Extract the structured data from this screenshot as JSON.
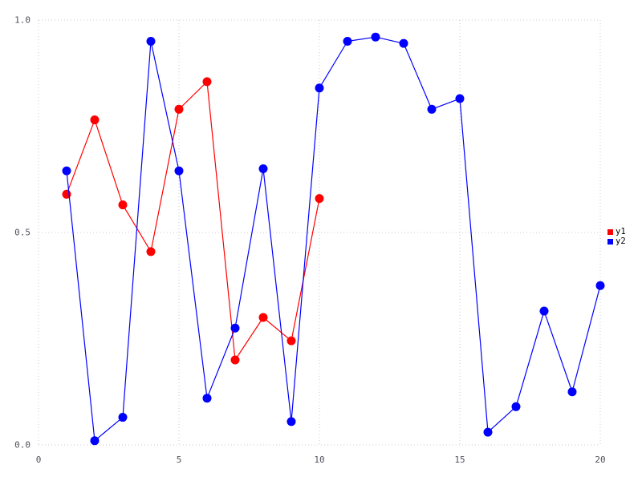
{
  "chart_data": {
    "type": "line",
    "title": "",
    "xlabel": "",
    "ylabel": "",
    "xlim": [
      0,
      20
    ],
    "ylim": [
      0,
      1
    ],
    "grid": true,
    "grid_style": "dotted",
    "legend_position": "right-outside",
    "xticks": [
      0,
      5,
      10,
      15,
      20
    ],
    "xtick_labels": [
      "0",
      "5",
      "10",
      "15",
      "20"
    ],
    "yticks": [
      0,
      0.5,
      1
    ],
    "ytick_labels": [
      "0.0",
      "0.5",
      "1.0"
    ],
    "series": [
      {
        "name": "y1",
        "color": "#ff0000",
        "marker": "circle",
        "x": [
          1,
          2,
          3,
          4,
          5,
          6,
          7,
          8,
          9,
          10
        ],
        "values": [
          0.59,
          0.765,
          0.565,
          0.455,
          0.79,
          0.855,
          0.2,
          0.3,
          0.245,
          0.58
        ]
      },
      {
        "name": "y2",
        "color": "#0000ff",
        "marker": "circle",
        "x": [
          1,
          2,
          3,
          4,
          5,
          6,
          7,
          8,
          9,
          10,
          11,
          12,
          13,
          14,
          15,
          16,
          17,
          18,
          19,
          20
        ],
        "values": [
          0.645,
          0.01,
          0.065,
          0.95,
          0.645,
          0.11,
          0.275,
          0.65,
          0.055,
          0.84,
          0.95,
          0.96,
          0.945,
          0.79,
          0.815,
          0.03,
          0.09,
          0.315,
          0.125,
          0.375
        ]
      }
    ]
  },
  "legend": {
    "items": [
      {
        "label": "y1",
        "color": "#ff0000"
      },
      {
        "label": "y2",
        "color": "#0000ff"
      }
    ]
  },
  "style": {
    "grid_color": "#c9c9da",
    "tick_label_color": "#50505a",
    "background": "#ffffff"
  }
}
